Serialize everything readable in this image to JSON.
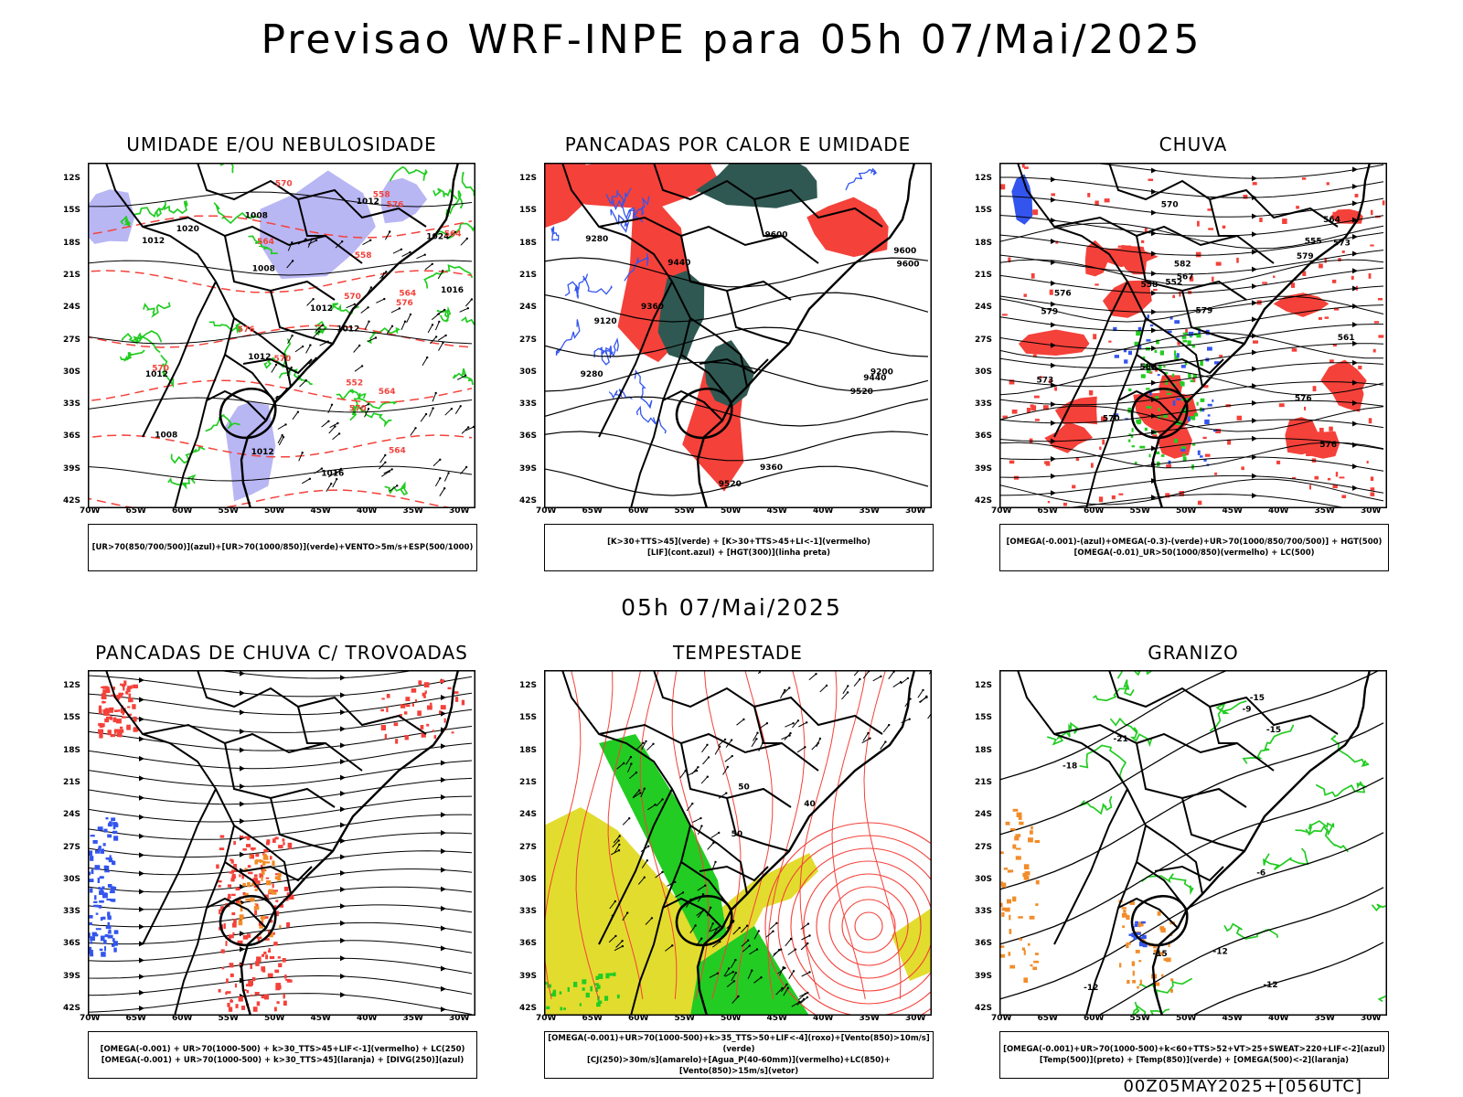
{
  "title": "Previsao WRF-INPE  para 05h 07/Mai/2025",
  "mid_title": "05h 07/Mai/2025",
  "footer": "00Z05MAY2025+[056UTC]",
  "axes": {
    "lat_labels": [
      "12S",
      "15S",
      "18S",
      "21S",
      "24S",
      "27S",
      "30S",
      "33S",
      "36S",
      "39S",
      "42S"
    ],
    "lon_labels": [
      "70W",
      "65W",
      "60W",
      "55W",
      "50W",
      "45W",
      "40W",
      "35W",
      "30W"
    ]
  },
  "colors": {
    "red": "#f4413a",
    "green": "#22cc22",
    "blue": "#3355ee",
    "lavender": "#b9b6f4",
    "dark_green": "#2f5852",
    "yellow": "#e2dc2e",
    "orange": "#f28c28",
    "black": "#000000"
  },
  "panels": [
    {
      "id": "umidade",
      "title": "UMIDADE E/OU NEBULOSIDADE",
      "caption": [
        "[UR>70(850/700/500)](azul)+[UR>70(1000/850)](verde)+VENTO>5m/s+ESP(500/1000)"
      ],
      "labels": [
        "1012",
        "1012",
        "1012",
        "1008",
        "1008",
        "1016",
        "1020",
        "1012",
        "1016",
        "1008",
        "1012",
        "1024",
        "1012",
        "1012",
        "576",
        "570",
        "570",
        "564",
        "564",
        "564",
        "564",
        "570",
        "558",
        "558",
        "552",
        "576",
        "570",
        "564",
        "570",
        "576"
      ]
    },
    {
      "id": "pancadas-calor",
      "title": "PANCADAS POR CALOR E UMIDADE",
      "caption": [
        "[K>30+TTS>45](verde) + [K>30+TTS>45+LI<-1](vermelho)",
        "[LIF](cont.azul) + [HGT(300)](linha preta)"
      ],
      "labels": [
        "9600",
        "9600",
        "9600",
        "9520",
        "9440",
        "9440",
        "9360",
        "9360",
        "9280",
        "9200",
        "9280",
        "9120",
        "9520"
      ]
    },
    {
      "id": "chuva",
      "title": "CHUVA",
      "caption": [
        "[OMEGA(-0.001)-(azul)+OMEGA(-0.3)-(verde)+UR>70(1000/850/700/500)] + HGT(500)",
        "[OMEGA(-0.01)_UR>50(1000/850)(vermelho) + LC(500)"
      ],
      "labels": [
        "582",
        "582",
        "579",
        "579",
        "576",
        "576",
        "576",
        "573",
        "573",
        "570",
        "567",
        "564",
        "561",
        "558",
        "555",
        "552",
        "579",
        "570"
      ]
    },
    {
      "id": "pancadas-trovoadas",
      "title": "PANCADAS DE CHUVA C/ TROVOADAS",
      "caption": [
        "[OMEGA(-0.001) + UR>70(1000-500) + k>30_TTS>45+LIF<-1](vermelho) + LC(250)",
        "[OMEGA(-0.001) + UR>70(1000-500) + k>30_TTS>45](laranja) + [DIVG(250)](azul)"
      ],
      "labels": []
    },
    {
      "id": "tempestade",
      "title": "TEMPESTADE",
      "caption": [
        "[OMEGA(-0.001)+UR>70(1000-500)+k>35_TTS>50+LIF<-4](roxo)+[Vento(850)>10m/s](verde)",
        "[CJ(250)>30m/s](amarelo)+[Agua_P(40-60mm)](vermelho)+LC(850)+[Vento(850)>15m/s](vetor)"
      ],
      "labels": [
        "40",
        "50",
        "50"
      ]
    },
    {
      "id": "granizo",
      "title": "GRANIZO",
      "caption": [
        "[OMEGA(-0.001)+UR>70(1000-500)+k<60+TTS>52+VT>25+SWEAT>220+LIF<-2](azul)",
        "[Temp(500)](preto) + [Temp(850)](verde) + [OMEGA(500)<-2](laranja)"
      ],
      "labels": [
        "-6",
        "-9",
        "-12",
        "-12",
        "-12",
        "-15",
        "-15",
        "-15",
        "-18",
        "-21"
      ]
    }
  ]
}
